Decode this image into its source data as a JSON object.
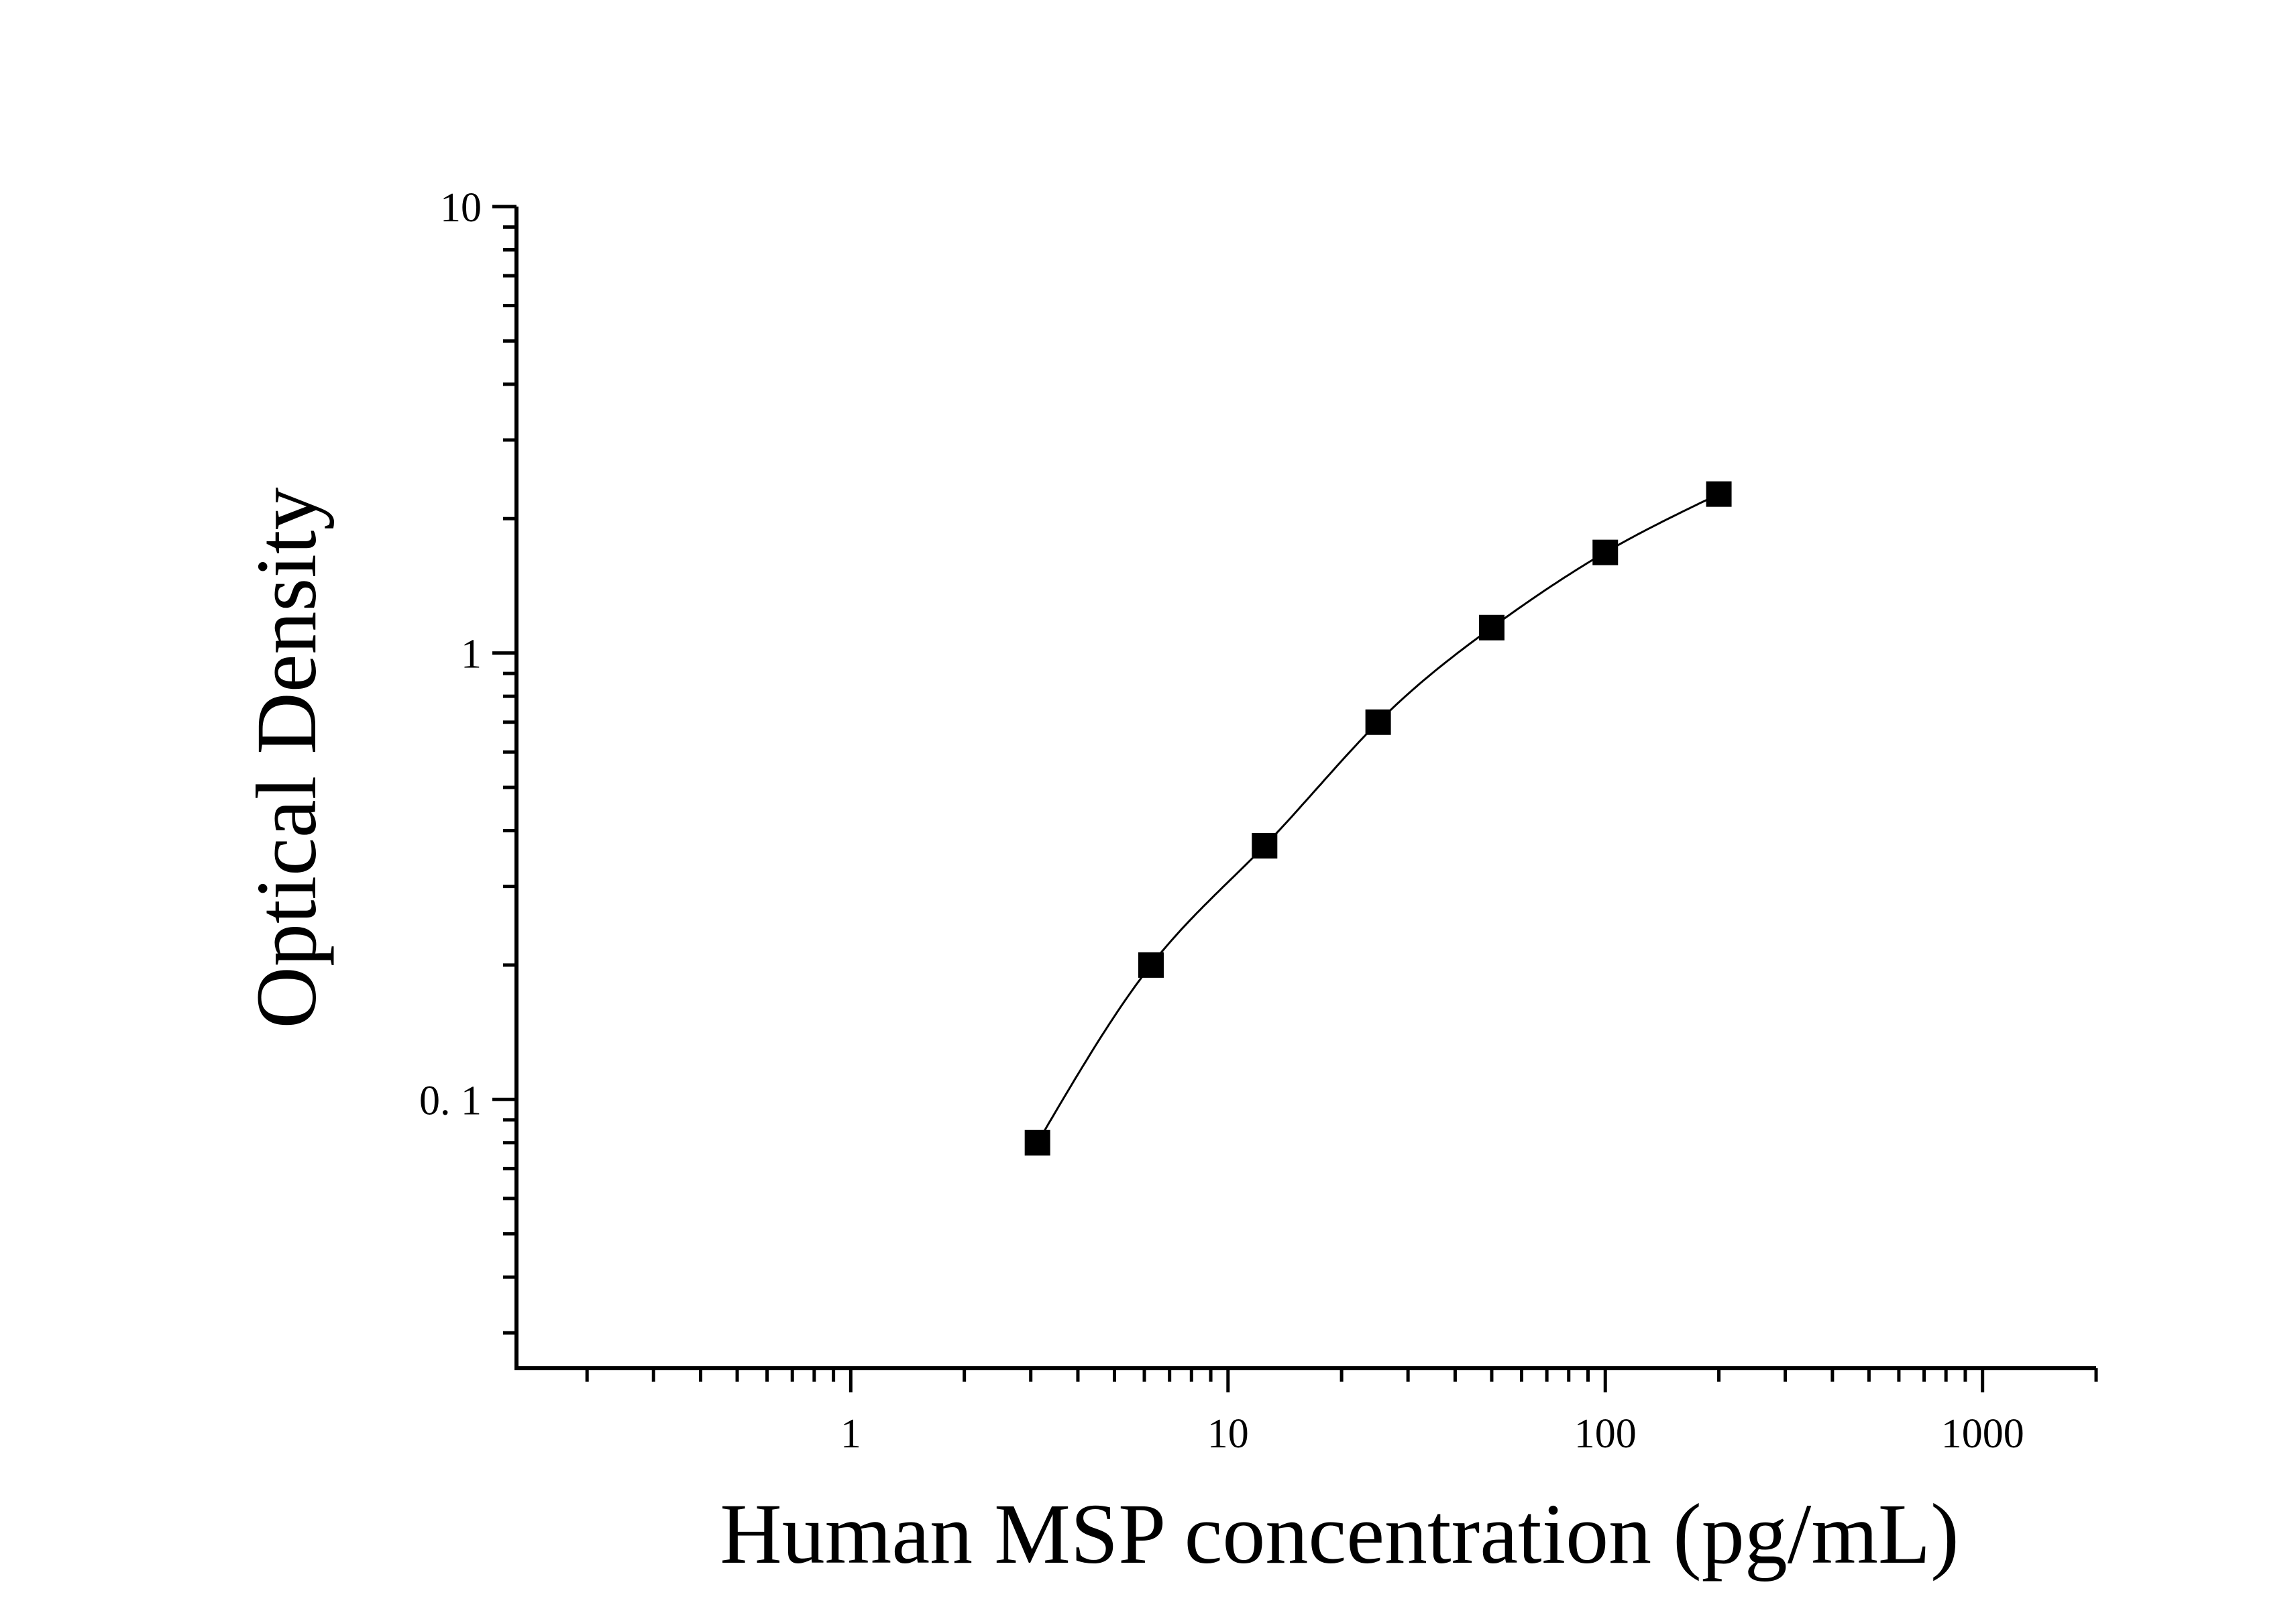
{
  "chart_data": {
    "type": "scatter",
    "title": "",
    "xlabel": "Human MSP concentration (pg/mL)",
    "ylabel": "Optical Density",
    "xscale": "log",
    "yscale": "log",
    "xlim": [
      0.13,
      2000
    ],
    "ylim": [
      0.025,
      10
    ],
    "grid": false,
    "legend": "none",
    "x_ticks": [
      {
        "value": 1,
        "label": "1"
      },
      {
        "value": 10,
        "label": "10"
      },
      {
        "value": 100,
        "label": "100"
      },
      {
        "value": 1000,
        "label": "1000"
      }
    ],
    "y_ticks": [
      {
        "value": 0.1,
        "label": "0. 1"
      },
      {
        "value": 1,
        "label": "1"
      },
      {
        "value": 10,
        "label": "10"
      }
    ],
    "series": [
      {
        "marker": "square",
        "color": "#000000",
        "fit_curve": true,
        "x": [
          3.125,
          6.25,
          12.5,
          25,
          50,
          100,
          200
        ],
        "y": [
          0.08,
          0.2,
          0.37,
          0.7,
          1.14,
          1.68,
          2.27
        ]
      }
    ]
  }
}
